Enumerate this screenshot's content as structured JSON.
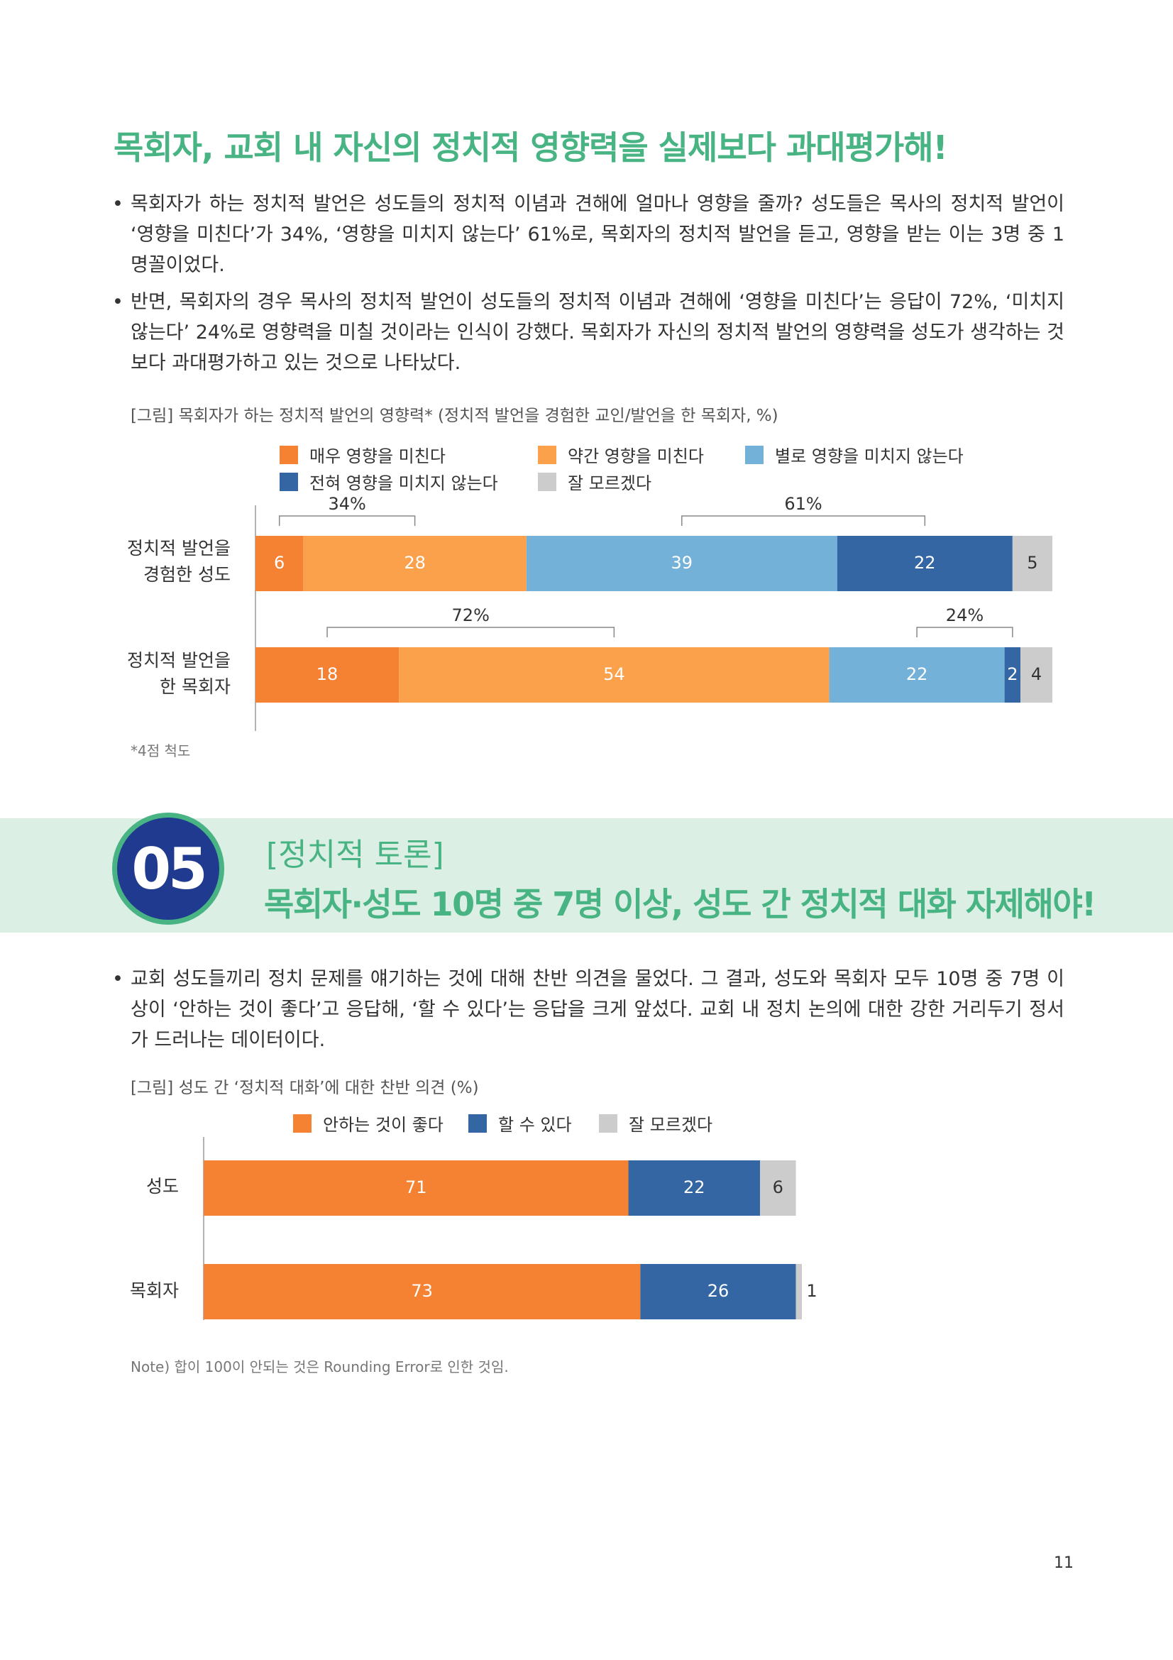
{
  "headline": "목회자, 교회 내 자신의 정치적 영향력을 실제보다 과대평가해!",
  "bullets_top": [
    "목회자가 하는 정치적 발언은 성도들의 정치적 이념과 견해에 얼마나 영향을 줄까? 성도들은 목사의 정치적 발언이 ‘영향을 미친다’가 34%, ‘영향을 미치지 않는다’ 61%로, 목회자의 정치적 발언을 듣고, 영향을 받는 이는 3명 중 1명꼴이었다.",
    "반면, 목회자의 경우 목사의 정치적 발언이 성도들의 정치적 이념과 견해에 ‘영향을 미친다’는 응답이 72%, ‘미치지 않는다’ 24%로 영향력을 미칠 것이라는 인식이 강했다. 목회자가 자신의 정치적 발언의 영향력을 성도가 생각하는 것보다 과대평가하고 있는 것으로 나타났다."
  ],
  "bullet_mark": "•",
  "figure1_caption": "[그림] 목회자가 하는 정치적 발언의 영향력* (정치적 발언을 경험한 교인/발언을 한 목회자, %)",
  "figure1_note": "*4점 척도",
  "section": {
    "number": "05",
    "subtitle": "[정치적 토론]",
    "title": "목회자·성도 10명 중 7명 이상, 성도 간 정치적 대화 자제해야!"
  },
  "bullet_section": "교회 성도들끼리 정치 문제를 얘기하는 것에 대해 찬반 의견을 물었다. 그 결과, 성도와 목회자 모두 10명 중 7명 이상이 ‘안하는 것이 좋다’고 응답해, ‘할 수 있다’는 응답을 크게 앞섰다. 교회 내 정치 논의에 대한 강한 거리두기 정서가 드러나는 데이터이다.",
  "figure2_caption": "[그림] 성도 간 ‘정치적 대화’에 대한 찬반 의견 (%)",
  "figure2_note": "Note) 합이 100이 안되는 것은 Rounding Error로 인한 것임.",
  "page_number": "11",
  "chart_data": [
    {
      "type": "bar",
      "orientation": "horizontal",
      "stacked": true,
      "categories": [
        "정치적 발언을\n경험한 성도",
        "정치적 발언을\n한 목회자"
      ],
      "series": [
        {
          "name": "매우 영향을 미친다",
          "color": "#f58232",
          "values": [
            6,
            18
          ]
        },
        {
          "name": "약간 영향을 미친다",
          "color": "#fba04b",
          "values": [
            28,
            54
          ]
        },
        {
          "name": "별로 영향을 미치지 않는다",
          "color": "#74b1d8",
          "values": [
            39,
            22
          ]
        },
        {
          "name": "전혀 영향을 미치지 않는다",
          "color": "#3366a3",
          "values": [
            22,
            2
          ]
        },
        {
          "name": "잘 모르겠다",
          "color": "#cccccc",
          "values": [
            5,
            4
          ]
        }
      ],
      "brackets": [
        {
          "row": 0,
          "label": "34%",
          "from": 0,
          "to": 2
        },
        {
          "row": 0,
          "label": "61%",
          "from": 2,
          "to": 4
        },
        {
          "row": 1,
          "label": "72%",
          "from": 0,
          "to": 2
        },
        {
          "row": 1,
          "label": "24%",
          "from": 2,
          "to": 4
        }
      ],
      "legend_position": "top",
      "xlim": [
        0,
        100
      ]
    },
    {
      "type": "bar",
      "orientation": "horizontal",
      "stacked": true,
      "categories": [
        "성도",
        "목회자"
      ],
      "series": [
        {
          "name": "안하는 것이 좋다",
          "color": "#f58232",
          "values": [
            71,
            73
          ]
        },
        {
          "name": "할 수 있다",
          "color": "#3366a3",
          "values": [
            22,
            26
          ]
        },
        {
          "name": "잘 모르겠다",
          "color": "#cccccc",
          "values": [
            6,
            1
          ]
        }
      ],
      "legend_position": "top",
      "xlim": [
        0,
        100
      ]
    }
  ]
}
